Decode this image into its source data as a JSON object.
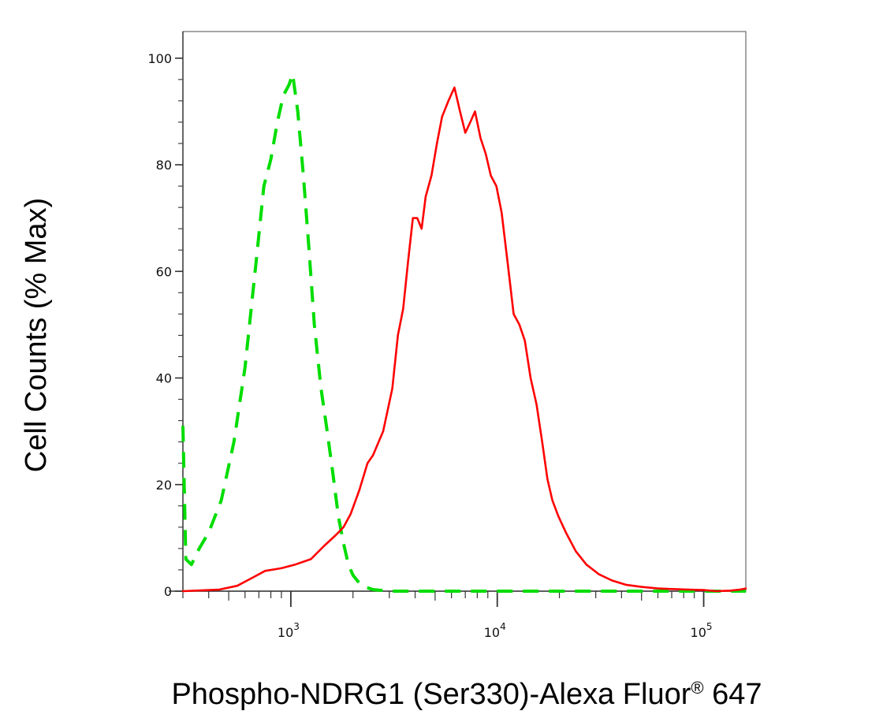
{
  "chart_data": {
    "type": "line",
    "xlabel": "Phospho-NDRG1 (Ser330)-Alexa Fluor® 647",
    "ylabel": "Cell Counts (% Max)",
    "x_scale": "log",
    "xlim": [
      300,
      160000
    ],
    "ylim": [
      0,
      105
    ],
    "y_ticks": [
      0,
      20,
      40,
      60,
      80,
      100
    ],
    "x_ticks": [
      {
        "value": 1000,
        "base": "10",
        "exp": "3"
      },
      {
        "value": 10000,
        "base": "10",
        "exp": "4"
      },
      {
        "value": 100000,
        "base": "10",
        "exp": "5"
      }
    ],
    "grid": false,
    "series": [
      {
        "color": "#00dd00",
        "style": "dashed",
        "points": [
          [
            300,
            31
          ],
          [
            310,
            6
          ],
          [
            330,
            5
          ],
          [
            360,
            8
          ],
          [
            400,
            11
          ],
          [
            460,
            17
          ],
          [
            530,
            28
          ],
          [
            600,
            42
          ],
          [
            680,
            62
          ],
          [
            740,
            76
          ],
          [
            800,
            81
          ],
          [
            860,
            88
          ],
          [
            920,
            93
          ],
          [
            980,
            95
          ],
          [
            1020,
            97
          ],
          [
            1080,
            90
          ],
          [
            1150,
            78
          ],
          [
            1220,
            65
          ],
          [
            1300,
            50
          ],
          [
            1400,
            38
          ],
          [
            1500,
            30
          ],
          [
            1600,
            22
          ],
          [
            1700,
            14
          ],
          [
            1800,
            9
          ],
          [
            1900,
            5
          ],
          [
            2000,
            3
          ],
          [
            2200,
            1
          ],
          [
            2500,
            0.3
          ],
          [
            3000,
            0
          ],
          [
            160000,
            0
          ]
        ]
      },
      {
        "color": "#ff0000",
        "style": "solid",
        "points": [
          [
            300,
            0
          ],
          [
            450,
            0.3
          ],
          [
            550,
            1
          ],
          [
            650,
            2.5
          ],
          [
            750,
            3.8
          ],
          [
            900,
            4.3
          ],
          [
            1050,
            5
          ],
          [
            1250,
            6
          ],
          [
            1450,
            8.5
          ],
          [
            1650,
            10.5
          ],
          [
            1800,
            12
          ],
          [
            1950,
            14.5
          ],
          [
            2150,
            19
          ],
          [
            2350,
            24
          ],
          [
            2500,
            25.5
          ],
          [
            2800,
            30
          ],
          [
            3100,
            38
          ],
          [
            3300,
            48
          ],
          [
            3500,
            53
          ],
          [
            3700,
            62
          ],
          [
            3900,
            70
          ],
          [
            4100,
            70
          ],
          [
            4300,
            68
          ],
          [
            4500,
            74
          ],
          [
            4800,
            78
          ],
          [
            5100,
            84
          ],
          [
            5400,
            89
          ],
          [
            5800,
            92
          ],
          [
            6200,
            94.5
          ],
          [
            6600,
            90
          ],
          [
            7000,
            86
          ],
          [
            7400,
            88
          ],
          [
            7800,
            90
          ],
          [
            8300,
            85
          ],
          [
            8800,
            82
          ],
          [
            9300,
            78
          ],
          [
            9900,
            76
          ],
          [
            10500,
            71
          ],
          [
            11200,
            62
          ],
          [
            12000,
            52
          ],
          [
            12800,
            50
          ],
          [
            13600,
            47
          ],
          [
            14500,
            40
          ],
          [
            15500,
            35
          ],
          [
            16500,
            28
          ],
          [
            17500,
            21
          ],
          [
            18500,
            17
          ],
          [
            19800,
            14
          ],
          [
            21500,
            11
          ],
          [
            24000,
            7.5
          ],
          [
            27000,
            5
          ],
          [
            31000,
            3.2
          ],
          [
            36000,
            2
          ],
          [
            42000,
            1.2
          ],
          [
            50000,
            0.8
          ],
          [
            60000,
            0.5
          ],
          [
            70000,
            0.4
          ],
          [
            85000,
            0.3
          ],
          [
            100000,
            0.2
          ],
          [
            115000,
            0
          ],
          [
            135000,
            0.1
          ],
          [
            150000,
            0.3
          ],
          [
            160000,
            0.5
          ]
        ]
      }
    ]
  }
}
